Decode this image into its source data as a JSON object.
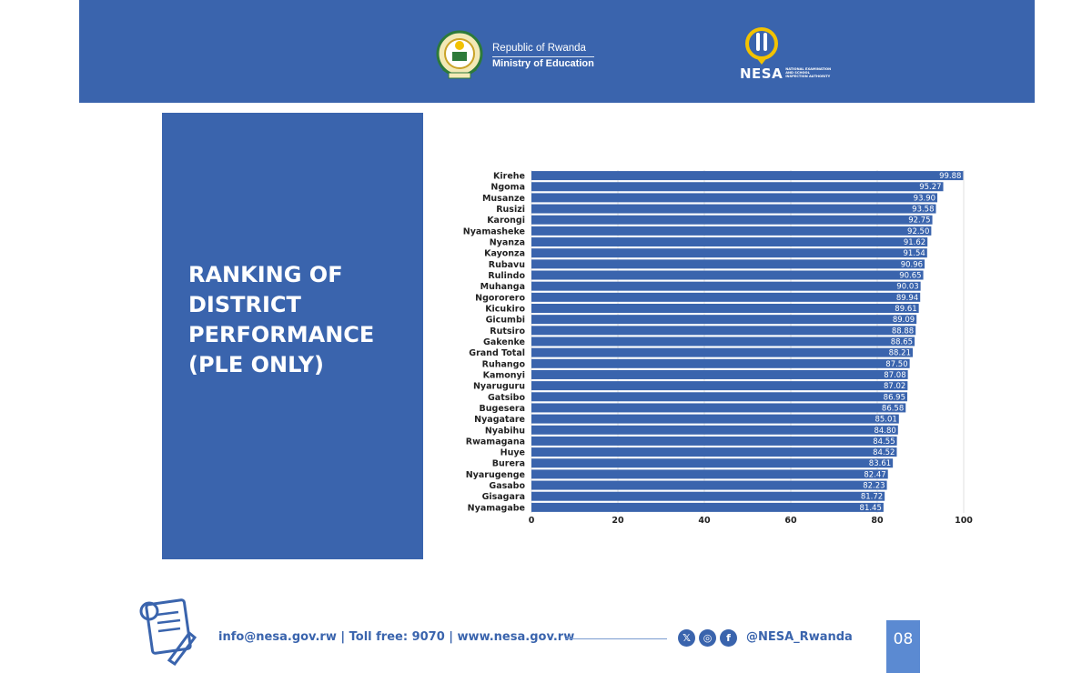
{
  "header": {
    "republic": "Republic of Rwanda",
    "ministry": "Ministry of Education",
    "nesa_word": "NESA",
    "nesa_sub": "NATIONAL EXAMINATION AND SCHOOL INSPECTION AUTHORITY",
    "bg_color": "#3a64ad"
  },
  "panel": {
    "title": "RANKING OF DISTRICT PERFORMANCE (PLE ONLY)"
  },
  "chart_data": {
    "type": "bar",
    "orientation": "horizontal",
    "categories": [
      "Kirehe",
      "Ngoma",
      "Musanze",
      "Rusizi",
      "Karongi",
      "Nyamasheke",
      "Nyanza",
      "Kayonza",
      "Rubavu",
      "Rulindo",
      "Muhanga",
      "Ngororero",
      "Kicukiro",
      "Gicumbi",
      "Rutsiro",
      "Gakenke",
      "Grand Total",
      "Ruhango",
      "Kamonyi",
      "Nyaruguru",
      "Gatsibo",
      "Bugesera",
      "Nyagatare",
      "Nyabihu",
      "Rwamagana",
      "Huye",
      "Burera",
      "Nyarugenge",
      "Gasabo",
      "Gisagara",
      "Nyamagabe"
    ],
    "values": [
      99.88,
      95.27,
      93.9,
      93.58,
      92.75,
      92.5,
      91.62,
      91.54,
      90.96,
      90.65,
      90.03,
      89.94,
      89.61,
      89.09,
      88.88,
      88.65,
      88.21,
      87.5,
      87.08,
      87.02,
      86.95,
      86.58,
      85.01,
      84.8,
      84.55,
      84.52,
      83.61,
      82.47,
      82.23,
      81.72,
      81.45
    ],
    "value_labels": [
      "99.88",
      "95.27",
      "93.90",
      "93.58",
      "92.75",
      "92.50",
      "91.62",
      "91.54",
      "90.96",
      "90.65",
      "90.03",
      "89.94",
      "89.61",
      "89.09",
      "88.88",
      "88.65",
      "88.21",
      "87.50",
      "87.08",
      "87.02",
      "86.95",
      "86.58",
      "85.01",
      "84.80",
      "84.55",
      "84.52",
      "83.61",
      "82.47",
      "82.23",
      "81.72",
      "81.45"
    ],
    "xlim": [
      0,
      100
    ],
    "xticks": [
      "0",
      "20",
      "40",
      "60",
      "80",
      "100"
    ],
    "bar_color": "#3a64ad",
    "grid": true
  },
  "footer": {
    "contact": "info@nesa.gov.rw  |  Toll free: 9070  |  www.nesa.gov.rw",
    "handle": "@NESA_Rwanda",
    "page": "08",
    "icons": [
      "x-icon",
      "instagram-icon",
      "facebook-icon"
    ],
    "x_glyph": "𝕏",
    "ig_glyph": "◎",
    "fb_glyph": "f"
  }
}
